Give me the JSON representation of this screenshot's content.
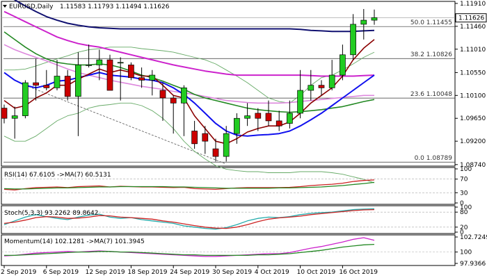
{
  "header": {
    "symbol_label": "EURUSD,Daily",
    "ohlc_values": "1.11583 1.11793 1.11494 1.11626"
  },
  "price_axis": {
    "ticks": [
      "1.11910",
      "1.11460",
      "1.11010",
      "1.10550",
      "1.10100",
      "1.09650",
      "1.09200",
      "1.08740"
    ],
    "current_price": "1.11626"
  },
  "fib_levels": [
    {
      "label": "50.0 1.11455",
      "value": 1.11455
    },
    {
      "label": "38.2 1.10826",
      "value": 1.10826
    },
    {
      "label": "23.6 1.10048",
      "value": 1.10048
    },
    {
      "label": "0.0 1.08789",
      "value": 1.08789
    }
  ],
  "rsi_panel": {
    "label": "RSI(14) 67.6105 ->MA(7) 60.5131",
    "ticks": [
      "100",
      "70",
      "30",
      "0"
    ],
    "current_values": [
      67.61,
      60.51
    ]
  },
  "stoch_panel": {
    "label": "Stoch(5,3,3) 93.2262 89.8642",
    "ticks": [
      "100",
      "80",
      "20",
      "0"
    ],
    "current_values": [
      93.23,
      89.86
    ]
  },
  "momentum_panel": {
    "label": "Momentum(14) 102.1281 ->MA(7) 101.3945",
    "ticks": [
      "102.7249",
      "100",
      "97.9366"
    ],
    "current_values": [
      102.13,
      101.39
    ]
  },
  "date_axis": {
    "labels": [
      "2 Sep 2019",
      "6 Sep 2019",
      "12 Sep 2019",
      "18 Sep 2019",
      "24 Sep 2019",
      "30 Sep 2019",
      "4 Oct 2019",
      "10 Oct 2019",
      "16 Oct 2019"
    ]
  },
  "colors": {
    "bull": "#22cc22",
    "bear": "#cc0000",
    "ma_navy": "#101070",
    "ma_blue": "#1010ee",
    "ma_magenta": "#cc22cc",
    "ma_pink": "#dd88dd",
    "ma_maroon": "#8b0000",
    "ma_green": "#228822",
    "bollinger": "#66aa66",
    "rsi_line": "#cc2222",
    "rsi_ma": "#228822",
    "stoch_k": "#22aaaa",
    "stoch_d": "#cc2222",
    "momentum": "#cc22cc",
    "momentum_ma": "#228822"
  },
  "chart_data": [
    {
      "type": "candlestick",
      "title": "EURUSD,Daily",
      "x": [
        "2 Sep 2019",
        "3 Sep 2019",
        "4 Sep 2019",
        "5 Sep 2019",
        "6 Sep 2019",
        "9 Sep 2019",
        "10 Sep 2019",
        "11 Sep 2019",
        "12 Sep 2019",
        "13 Sep 2019",
        "16 Sep 2019",
        "17 Sep 2019",
        "18 Sep 2019",
        "19 Sep 2019",
        "20 Sep 2019",
        "23 Sep 2019",
        "24 Sep 2019",
        "25 Sep 2019",
        "26 Sep 2019",
        "27 Sep 2019",
        "30 Sep 2019",
        "1 Oct 2019",
        "2 Oct 2019",
        "3 Oct 2019",
        "4 Oct 2019",
        "7 Oct 2019",
        "8 Oct 2019",
        "9 Oct 2019",
        "10 Oct 2019",
        "11 Oct 2019",
        "14 Oct 2019",
        "15 Oct 2019",
        "16 Oct 2019",
        "17 Oct 2019",
        "18 Oct 2019",
        "21 Oct 2019"
      ],
      "open": [
        1.0985,
        1.0965,
        1.097,
        1.1035,
        1.103,
        1.1025,
        1.1048,
        1.1008,
        1.107,
        1.107,
        1.108,
        1.1075,
        1.107,
        1.1045,
        1.104,
        1.102,
        1.1005,
        1.0995,
        1.094,
        1.0935,
        1.0905,
        1.089,
        1.0935,
        1.0965,
        1.0975,
        1.0975,
        1.096,
        1.0955,
        1.0975,
        1.102,
        1.103,
        1.1025,
        1.105,
        1.109,
        1.115,
        1.1158
      ],
      "high": [
        1.0992,
        1.0988,
        1.104,
        1.1082,
        1.106,
        1.108,
        1.106,
        1.1095,
        1.111,
        1.11,
        1.109,
        1.1085,
        1.1075,
        1.1065,
        1.106,
        1.1035,
        1.101,
        1.103,
        1.096,
        1.095,
        1.0925,
        1.095,
        1.0975,
        1.0995,
        1.0985,
        1.1,
        1.098,
        1.1,
        1.106,
        1.106,
        1.104,
        1.108,
        1.111,
        1.117,
        1.118,
        1.1179
      ],
      "low": [
        1.0955,
        1.0925,
        1.0965,
        1.1,
        1.102,
        1.102,
        1.1,
        1.093,
        1.1065,
        1.104,
        1.102,
        1.1,
        1.104,
        1.1025,
        1.101,
        1.096,
        1.0935,
        1.093,
        1.0905,
        1.0895,
        1.088,
        1.088,
        1.0915,
        1.095,
        1.094,
        1.095,
        1.094,
        1.0945,
        1.0965,
        1.1,
        1.101,
        1.102,
        1.104,
        1.108,
        1.112,
        1.1149
      ],
      "close": [
        1.0965,
        1.097,
        1.1035,
        1.103,
        1.1025,
        1.1048,
        1.1008,
        1.107,
        1.107,
        1.108,
        1.102,
        1.1075,
        1.1045,
        1.104,
        1.105,
        1.1005,
        1.0995,
        1.1025,
        1.0915,
        1.092,
        1.089,
        1.0935,
        1.0965,
        1.097,
        1.0965,
        1.096,
        1.095,
        1.0975,
        1.102,
        1.103,
        1.1025,
        1.105,
        1.109,
        1.115,
        1.1158,
        1.1163
      ],
      "overlays": {
        "ma_navy": [
          1.121,
          1.1198,
          1.1186,
          1.1175,
          1.1165,
          1.1158,
          1.1152,
          1.1148,
          1.1145,
          1.1143,
          1.1142,
          1.1141,
          1.1141,
          1.1141,
          1.1141,
          1.1141,
          1.1141,
          1.1141,
          1.1141,
          1.1141,
          1.1141,
          1.1141,
          1.1141,
          1.1141,
          1.1141,
          1.1141,
          1.1141,
          1.1141,
          1.114,
          1.1138,
          1.1137,
          1.1136,
          1.1136,
          1.1136,
          1.1137,
          1.1138
        ],
        "ma_magenta": [
          1.1175,
          1.1165,
          1.1155,
          1.1145,
          1.1135,
          1.1125,
          1.1118,
          1.1112,
          1.1108,
          1.1105,
          1.11,
          1.1095,
          1.109,
          1.1085,
          1.108,
          1.1075,
          1.107,
          1.1066,
          1.1062,
          1.1058,
          1.1055,
          1.1052,
          1.105,
          1.105,
          1.105,
          1.105,
          1.105,
          1.105,
          1.105,
          1.1049,
          1.1048,
          1.1048,
          1.1048,
          1.1048,
          1.1049,
          1.105
        ],
        "ma_pink": [
          1.111,
          1.11,
          1.1092,
          1.1085,
          1.1078,
          1.107,
          1.1062,
          1.1055,
          1.105,
          1.1045,
          1.104,
          1.1036,
          1.1032,
          1.1028,
          1.1025,
          1.1022,
          1.1018,
          1.1015,
          1.1012,
          1.1008,
          1.1004,
          1.1,
          1.0998,
          1.0996,
          1.0995,
          1.0995,
          1.0995,
          1.0996,
          1.0998,
          1.1,
          1.1002,
          1.1004,
          1.1006,
          1.1008,
          1.101,
          1.101
        ],
        "ma_green": [
          1.1135,
          1.112,
          1.1105,
          1.1092,
          1.1082,
          1.1075,
          1.1072,
          1.107,
          1.107,
          1.1072,
          1.107,
          1.1065,
          1.1058,
          1.105,
          1.1045,
          1.1038,
          1.103,
          1.1022,
          1.1012,
          1.1005,
          1.1,
          1.0995,
          1.099,
          1.0985,
          1.0982,
          1.098,
          1.0978,
          1.0977,
          1.0978,
          1.098,
          1.0982,
          1.0985,
          1.0988,
          1.0993,
          1.0998,
          1.1002
        ],
        "ma_blue": [
          1.1055,
          1.104,
          1.103,
          1.1025,
          1.103,
          1.1038,
          1.104,
          1.1045,
          1.105,
          1.1055,
          1.105,
          1.1048,
          1.1046,
          1.1042,
          1.104,
          1.1035,
          1.1025,
          1.1012,
          1.0995,
          1.0975,
          1.0955,
          1.094,
          1.0932,
          1.093,
          1.0932,
          1.0933,
          1.0935,
          1.094,
          1.095,
          1.0962,
          1.0975,
          1.099,
          1.1005,
          1.102,
          1.1035,
          1.105
        ],
        "ma_maroon": [
          1.1,
          1.0985,
          1.099,
          1.1005,
          1.1015,
          1.103,
          1.103,
          1.1042,
          1.1052,
          1.1062,
          1.1055,
          1.106,
          1.1055,
          1.1048,
          1.1048,
          1.103,
          1.101,
          1.1005,
          1.097,
          1.0945,
          1.092,
          1.0915,
          1.0925,
          1.0938,
          1.0945,
          1.095,
          1.095,
          1.0958,
          1.0975,
          1.0995,
          1.101,
          1.1025,
          1.1048,
          1.108,
          1.1103,
          1.112
        ],
        "bb_upper": [
          1.106,
          1.106,
          1.1062,
          1.1068,
          1.1075,
          1.1082,
          1.1088,
          1.1095,
          1.11,
          1.1102,
          1.1105,
          1.1105,
          1.1105,
          1.1102,
          1.11,
          1.1098,
          1.1095,
          1.109,
          1.1085,
          1.108,
          1.1072,
          1.106,
          1.1048,
          1.1035,
          1.102,
          1.1005,
          1.0998,
          1.0995,
          1.101,
          1.103,
          1.1045,
          1.105,
          1.106,
          1.1072,
          1.1085,
          1.1095
        ],
        "bb_lower": [
          1.093,
          1.092,
          1.092,
          1.093,
          1.0945,
          1.096,
          1.097,
          1.0975,
          1.0985,
          1.099,
          1.0992,
          1.0995,
          1.0995,
          1.099,
          1.098,
          1.0965,
          1.0945,
          1.092,
          1.09,
          1.0885,
          1.0872,
          1.0865,
          1.0862,
          1.086,
          1.086,
          1.0858,
          1.0858,
          1.0858,
          1.086,
          1.086,
          1.086,
          1.0858,
          1.0855,
          1.085,
          1.0845,
          1.0838
        ]
      },
      "ylim": [
        1.0871,
        1.1195
      ]
    },
    {
      "type": "line",
      "title": "RSI(14)",
      "series": [
        {
          "name": "RSI(14)",
          "values": [
            40,
            38,
            42,
            45,
            46,
            47,
            45,
            48,
            49,
            50,
            47,
            49,
            48,
            47,
            47,
            46,
            45,
            46,
            42,
            41,
            40,
            42,
            44,
            45,
            45,
            45,
            45,
            46,
            48,
            51,
            53,
            55,
            58,
            63,
            66,
            67.6
          ]
        },
        {
          "name": "MA(7)",
          "values": [
            42,
            41,
            41,
            42,
            43,
            44,
            44,
            45,
            46,
            47,
            47,
            48,
            48,
            48,
            48,
            48,
            47,
            47,
            46,
            45,
            44,
            43,
            43,
            43,
            43,
            43,
            44,
            44,
            45,
            46,
            47,
            49,
            51,
            54,
            57,
            60.5
          ]
        }
      ],
      "ylim": [
        0,
        100
      ]
    },
    {
      "type": "line",
      "title": "Stoch(5,3,3)",
      "series": [
        {
          "name": "%K",
          "values": [
            30,
            45,
            60,
            70,
            62,
            55,
            50,
            60,
            68,
            72,
            60,
            55,
            58,
            50,
            45,
            40,
            35,
            25,
            20,
            15,
            12,
            18,
            30,
            45,
            55,
            60,
            58,
            62,
            70,
            75,
            78,
            80,
            85,
            90,
            92,
            93.2
          ]
        },
        {
          "name": "%D",
          "values": [
            35,
            40,
            48,
            58,
            62,
            60,
            55,
            56,
            60,
            66,
            65,
            60,
            58,
            55,
            52,
            45,
            40,
            33,
            26,
            20,
            16,
            15,
            20,
            30,
            42,
            52,
            57,
            60,
            64,
            70,
            74,
            78,
            82,
            86,
            89,
            89.9
          ]
        }
      ],
      "ylim": [
        0,
        100
      ]
    },
    {
      "type": "line",
      "title": "Momentum(14)",
      "series": [
        {
          "name": "Momentum(14)",
          "values": [
            99.3,
            99.4,
            99.6,
            99.8,
            99.9,
            100.0,
            100.1,
            100.0,
            100.1,
            100.2,
            100.1,
            100.0,
            99.9,
            99.8,
            99.7,
            99.6,
            99.5,
            99.4,
            99.3,
            99.2,
            99.2,
            99.3,
            99.4,
            99.5,
            99.6,
            99.7,
            99.7,
            99.9,
            100.3,
            100.7,
            101.0,
            101.4,
            101.8,
            102.3,
            102.6,
            102.13
          ]
        },
        {
          "name": "MA(7)",
          "values": [
            99.4,
            99.4,
            99.5,
            99.6,
            99.7,
            99.8,
            99.9,
            100.0,
            100.0,
            100.1,
            100.1,
            100.0,
            100.0,
            99.9,
            99.8,
            99.7,
            99.6,
            99.5,
            99.5,
            99.4,
            99.4,
            99.4,
            99.4,
            99.4,
            99.5,
            99.5,
            99.6,
            99.7,
            99.9,
            100.1,
            100.3,
            100.6,
            100.9,
            101.1,
            101.3,
            101.39
          ]
        }
      ],
      "ylim": [
        97.9366,
        102.7249
      ]
    }
  ]
}
